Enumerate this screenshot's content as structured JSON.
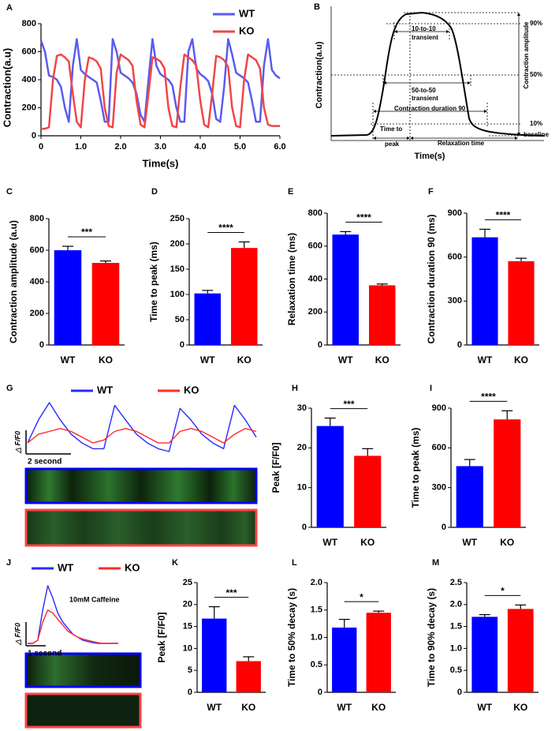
{
  "chart_data": [
    {
      "type": "line",
      "panel": "A",
      "xlabel": "Time(s)",
      "ylabel": "Contraction(a.u)",
      "legend": "upper right",
      "x": [
        0,
        0.1,
        0.2,
        0.3,
        0.4,
        0.5,
        0.6,
        0.7,
        0.8,
        0.9,
        1,
        1.1,
        1.2,
        1.3,
        1.4,
        1.5,
        1.6,
        1.7,
        1.8,
        1.9,
        2,
        2.1,
        2.2,
        2.3,
        2.4,
        2.5,
        2.6,
        2.7,
        2.8,
        2.9,
        3,
        3.1,
        3.2,
        3.3,
        3.4,
        3.5,
        3.6,
        3.7,
        3.8,
        3.9,
        4,
        4.1,
        4.2,
        4.3,
        4.4,
        4.5,
        4.6,
        4.7,
        4.8,
        4.9,
        5,
        5.1,
        5.2,
        5.3,
        5.4,
        5.5,
        5.6,
        5.7,
        5.8,
        5.9,
        6
      ],
      "series": [
        {
          "name": "WT",
          "color": "#5b5bf0",
          "values": [
            680,
            600,
            430,
            420,
            400,
            350,
            200,
            100,
            500,
            690,
            470,
            440,
            420,
            400,
            380,
            250,
            100,
            100,
            690,
            600,
            450,
            430,
            410,
            380,
            300,
            150,
            100,
            400,
            690,
            500,
            440,
            420,
            400,
            360,
            200,
            100,
            100,
            600,
            690,
            480,
            440,
            420,
            390,
            300,
            120,
            100,
            350,
            690,
            580,
            450,
            430,
            410,
            380,
            250,
            100,
            100,
            500,
            690,
            470,
            430,
            410
          ]
        },
        {
          "name": "KO",
          "color": "#f04646",
          "values": [
            50,
            50,
            60,
            400,
            570,
            580,
            560,
            530,
            300,
            100,
            60,
            400,
            560,
            550,
            530,
            480,
            200,
            70,
            60,
            450,
            580,
            560,
            540,
            500,
            250,
            80,
            60,
            300,
            560,
            550,
            530,
            480,
            200,
            70,
            60,
            350,
            580,
            560,
            540,
            500,
            250,
            80,
            60,
            300,
            570,
            560,
            540,
            490,
            200,
            70,
            60,
            400,
            580,
            560,
            540,
            480,
            200,
            80,
            70,
            70,
            70
          ]
        }
      ],
      "xlim": [
        0,
        6
      ],
      "xticks": [
        0,
        {
          "value": 1,
          "label": "1.0"
        },
        {
          "value": 2,
          "label": "2.0"
        },
        {
          "value": 3,
          "label": "3.0"
        },
        {
          "value": 4,
          "label": "4.0"
        },
        {
          "value": 5,
          "label": "5.0"
        },
        {
          "value": 6,
          "label": "6.0"
        }
      ],
      "ylim": [
        0,
        800
      ],
      "yticks": [
        0,
        200,
        400,
        600,
        800
      ]
    },
    {
      "type": "diagram",
      "panel": "B",
      "xlabel": "Time(s)",
      "ylabel": "Contraction(a.u)",
      "annotations": [
        "90%",
        "50%",
        "10%",
        "baseline",
        "10-to-10",
        "transient",
        "50-to-50",
        "transient",
        "Contraction duration 90",
        "Contraction amplitude",
        "Time to",
        "peak",
        "Relaxation time"
      ]
    },
    {
      "type": "bar",
      "panel": "C",
      "ylabel": "Contraction amplitude (a.u)",
      "categories": [
        "WT",
        "KO"
      ],
      "values": [
        600,
        520
      ],
      "errors": [
        25,
        12
      ],
      "colors": [
        "#0000ff",
        "#ff0000"
      ],
      "significance": "***",
      "ylim": [
        0,
        800
      ],
      "yticks": [
        0,
        200,
        400,
        600,
        800
      ]
    },
    {
      "type": "bar",
      "panel": "D",
      "ylabel": "Time to peak (ms)",
      "categories": [
        "WT",
        "KO"
      ],
      "values": [
        102,
        192
      ],
      "errors": [
        6,
        12
      ],
      "colors": [
        "#0000ff",
        "#ff0000"
      ],
      "significance": "****",
      "ylim": [
        0,
        250
      ],
      "yticks": [
        0,
        50,
        100,
        150,
        200,
        250
      ]
    },
    {
      "type": "bar",
      "panel": "E",
      "ylabel": "Relaxation time (ms)",
      "categories": [
        "WT",
        "KO"
      ],
      "values": [
        670,
        362
      ],
      "errors": [
        18,
        8
      ],
      "colors": [
        "#0000ff",
        "#ff0000"
      ],
      "significance": "****",
      "ylim": [
        0,
        800
      ],
      "yticks": [
        0,
        200,
        400,
        600,
        800
      ]
    },
    {
      "type": "bar",
      "panel": "F",
      "ylabel": "Contraction duration 90 (ms)",
      "categories": [
        "WT",
        "KO"
      ],
      "values": [
        735,
        572
      ],
      "errors": [
        55,
        20
      ],
      "colors": [
        "#0000ff",
        "#ff0000"
      ],
      "significance": "****",
      "ylim": [
        0,
        900
      ],
      "yticks": [
        0,
        300,
        600,
        900
      ]
    },
    {
      "type": "line",
      "panel": "G",
      "axes": false,
      "legend": "above",
      "scale_x_label": "2 second",
      "scale_y_label": "△ F/F0",
      "x": [
        0,
        0.5,
        1,
        1.5,
        2,
        2.5,
        3,
        3.5,
        4,
        4.5,
        5,
        5.5,
        6,
        6.5,
        7,
        7.5,
        8,
        8.5,
        9,
        9.5,
        10,
        10.5
      ],
      "series": [
        {
          "name": "WT",
          "color": "#2a2aff",
          "values": [
            0.3,
            0.7,
            1.0,
            0.7,
            0.45,
            0.3,
            0.2,
            0.2,
            0.95,
            0.7,
            0.45,
            0.3,
            0.2,
            0.15,
            0.9,
            0.7,
            0.45,
            0.3,
            0.2,
            0.95,
            0.7,
            0.4
          ]
        },
        {
          "name": "KO",
          "color": "#ff2a2a",
          "values": [
            0.3,
            0.45,
            0.5,
            0.55,
            0.5,
            0.4,
            0.3,
            0.35,
            0.5,
            0.55,
            0.5,
            0.4,
            0.3,
            0.3,
            0.5,
            0.55,
            0.5,
            0.4,
            0.3,
            0.45,
            0.55,
            0.5
          ]
        }
      ]
    },
    {
      "type": "bar",
      "panel": "H",
      "ylabel": "Peak [F/F0]",
      "categories": [
        "WT",
        "KO"
      ],
      "values": [
        25.5,
        18
      ],
      "errors": [
        2,
        1.8
      ],
      "colors": [
        "#0000ff",
        "#ff0000"
      ],
      "significance": "***",
      "ylim": [
        0,
        30
      ],
      "yticks": [
        0,
        10,
        20,
        30
      ]
    },
    {
      "type": "bar",
      "panel": "I",
      "ylabel": "Time to peak (ms)",
      "categories": [
        "WT",
        "KO"
      ],
      "values": [
        462,
        815
      ],
      "errors": [
        50,
        65
      ],
      "colors": [
        "#0000ff",
        "#ff0000"
      ],
      "significance": "****",
      "ylim": [
        0,
        900
      ],
      "yticks": [
        0,
        300,
        600,
        900
      ]
    },
    {
      "type": "line",
      "panel": "J",
      "axes": false,
      "legend": "above",
      "annotation": "10mM Caffeine",
      "scale_x_label": "1 second",
      "scale_y_label": "△ F/F0",
      "x": [
        0,
        0.25,
        0.5,
        0.75,
        1,
        1.25,
        1.5,
        1.75,
        2,
        2.25,
        2.5,
        2.75,
        3,
        3.25,
        3.5,
        3.75,
        4,
        4.25,
        4.5
      ],
      "series": [
        {
          "name": "WT",
          "color": "#2a2aff",
          "values": [
            0.05,
            0.05,
            0.1,
            0.6,
            1.0,
            0.8,
            0.55,
            0.4,
            0.3,
            0.2,
            0.15,
            0.1,
            0.08,
            0.06,
            0.05,
            0.05,
            0.05,
            0.05,
            0.05
          ]
        },
        {
          "name": "KO",
          "color": "#ff2a2a",
          "values": [
            0.05,
            0.05,
            0.1,
            0.4,
            0.6,
            0.55,
            0.45,
            0.35,
            0.25,
            0.2,
            0.15,
            0.12,
            0.1,
            0.08,
            0.06,
            0.05,
            0.05,
            0.05,
            0.05
          ]
        }
      ]
    },
    {
      "type": "bar",
      "panel": "K",
      "ylabel": "Peak [F/F0]",
      "categories": [
        "WT",
        "KO"
      ],
      "values": [
        16.8,
        7.1
      ],
      "errors": [
        2.7,
        1.0
      ],
      "colors": [
        "#0000ff",
        "#ff0000"
      ],
      "significance": "***",
      "ylim": [
        0,
        25
      ],
      "yticks": [
        0,
        5,
        10,
        15,
        20,
        25
      ]
    },
    {
      "type": "bar",
      "panel": "L",
      "ylabel": "Time to 50% decay (s)",
      "categories": [
        "WT",
        "KO"
      ],
      "values": [
        1.18,
        1.45
      ],
      "errors": [
        0.15,
        0.03
      ],
      "colors": [
        "#0000ff",
        "#ff0000"
      ],
      "significance": "*",
      "ylim": [
        0,
        2
      ],
      "yticks": [
        0,
        0.5,
        {
          "value": 1,
          "label": "1.0"
        },
        1.5,
        {
          "value": 2,
          "label": "2.0"
        }
      ]
    },
    {
      "type": "bar",
      "panel": "M",
      "ylabel": "Time to 90% decay (s)",
      "categories": [
        "WT",
        "KO"
      ],
      "values": [
        1.72,
        1.9
      ],
      "errors": [
        0.05,
        0.09
      ],
      "colors": [
        "#0000ff",
        "#ff0000"
      ],
      "significance": "*",
      "ylim": [
        0,
        2.5
      ],
      "yticks": [
        0,
        0.5,
        {
          "value": 1,
          "label": "1.0"
        },
        1.5,
        {
          "value": 2,
          "label": "2.0"
        },
        2.5
      ]
    }
  ]
}
